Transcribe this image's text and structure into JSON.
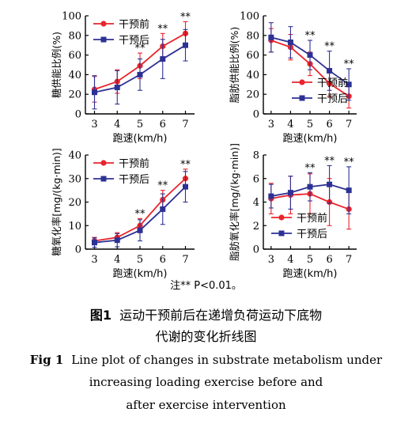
{
  "colors": {
    "pre": "#e8242c",
    "post": "#2d3194",
    "axis": "#000000"
  },
  "legend": {
    "pre": "干预前",
    "post": "干预后"
  },
  "markers": {
    "pre": "circle",
    "post": "square"
  },
  "chart_data": [
    {
      "id": "A",
      "type": "line",
      "ylabel": "糖供能比例(%)",
      "xlabel": "跑速(km/h)",
      "x": [
        3,
        4,
        5,
        6,
        7
      ],
      "xlim": [
        2.6,
        7.4
      ],
      "ylim": [
        0,
        100
      ],
      "yticks": [
        0,
        20,
        40,
        60,
        80,
        100
      ],
      "legend_position": "top-left",
      "significance": [
        "",
        "",
        "**",
        "**",
        "**"
      ],
      "series": [
        {
          "name": "干预前",
          "key": "pre",
          "values": [
            25,
            33,
            49,
            69,
            82
          ],
          "err": [
            13,
            12,
            13,
            13,
            12
          ]
        },
        {
          "name": "干预后",
          "key": "post",
          "values": [
            22,
            27,
            40,
            56,
            70
          ],
          "err": [
            17,
            17,
            16,
            20,
            16
          ]
        }
      ]
    },
    {
      "id": "B",
      "type": "line",
      "ylabel": "脂肪供能比例(%)",
      "xlabel": "跑速(km/h)",
      "x": [
        3,
        4,
        5,
        6,
        7
      ],
      "xlim": [
        2.6,
        7.4
      ],
      "ylim": [
        0,
        100
      ],
      "yticks": [
        0,
        20,
        40,
        60,
        80,
        100
      ],
      "legend_position": "bottom-right",
      "significance": [
        "",
        "",
        "**",
        "**",
        "**"
      ],
      "series": [
        {
          "name": "干预前",
          "key": "pre",
          "values": [
            75,
            68,
            51,
            31,
            18
          ],
          "err": [
            12,
            13,
            12,
            13,
            12
          ]
        },
        {
          "name": "干预后",
          "key": "post",
          "values": [
            78,
            73,
            60,
            44,
            30
          ],
          "err": [
            15,
            16,
            15,
            20,
            16
          ]
        }
      ]
    },
    {
      "id": "C",
      "type": "line",
      "ylabel": "糖氧化率[mg/(kg·min)]",
      "xlabel": "跑速(km/h)",
      "x": [
        3,
        4,
        5,
        6,
        7
      ],
      "xlim": [
        2.6,
        7.4
      ],
      "ylim": [
        0,
        40
      ],
      "yticks": [
        0,
        10,
        20,
        30,
        40
      ],
      "legend_position": "top-left",
      "significance": [
        "",
        "",
        "**",
        "**",
        "**"
      ],
      "series": [
        {
          "name": "干预前",
          "key": "pre",
          "values": [
            3.5,
            5.0,
            10.0,
            21.0,
            30.0
          ],
          "err": [
            1.5,
            2.0,
            3.0,
            4.0,
            4.0
          ]
        },
        {
          "name": "干预后",
          "key": "post",
          "values": [
            2.8,
            3.8,
            8.0,
            17.0,
            26.5
          ],
          "err": [
            2.0,
            2.8,
            4.5,
            6.5,
            6.5
          ]
        }
      ]
    },
    {
      "id": "D",
      "type": "line",
      "ylabel": "脂肪氧化率[mg/(kg·min)]",
      "xlabel": "跑速(km/h)",
      "x": [
        3,
        4,
        5,
        6,
        7
      ],
      "xlim": [
        2.6,
        7.4
      ],
      "ylim": [
        0,
        8
      ],
      "yticks": [
        0,
        2,
        4,
        6,
        8
      ],
      "legend_position": "bottom-center",
      "significance": [
        "",
        "",
        "**",
        "**",
        "**"
      ],
      "series": [
        {
          "name": "干预前",
          "key": "pre",
          "values": [
            4.3,
            4.6,
            4.7,
            4.0,
            3.4
          ],
          "err": [
            1.3,
            1.6,
            1.7,
            2.0,
            1.7
          ]
        },
        {
          "name": "干预后",
          "key": "post",
          "values": [
            4.5,
            4.8,
            5.3,
            5.5,
            5.0
          ],
          "err": [
            1.0,
            1.4,
            1.2,
            1.6,
            2.0
          ]
        }
      ]
    }
  ],
  "note": "注** P<0.01。",
  "caption": {
    "cn_label": "图1",
    "cn_line1": "运动干预前后在递增负荷运动下底物",
    "cn_line2": "代谢的变化折线图",
    "en_label": "Fig 1",
    "en_line1": "Line plot of changes in substrate metabolism under",
    "en_line2": "increasing loading exercise before and",
    "en_line3": "after exercise intervention"
  }
}
